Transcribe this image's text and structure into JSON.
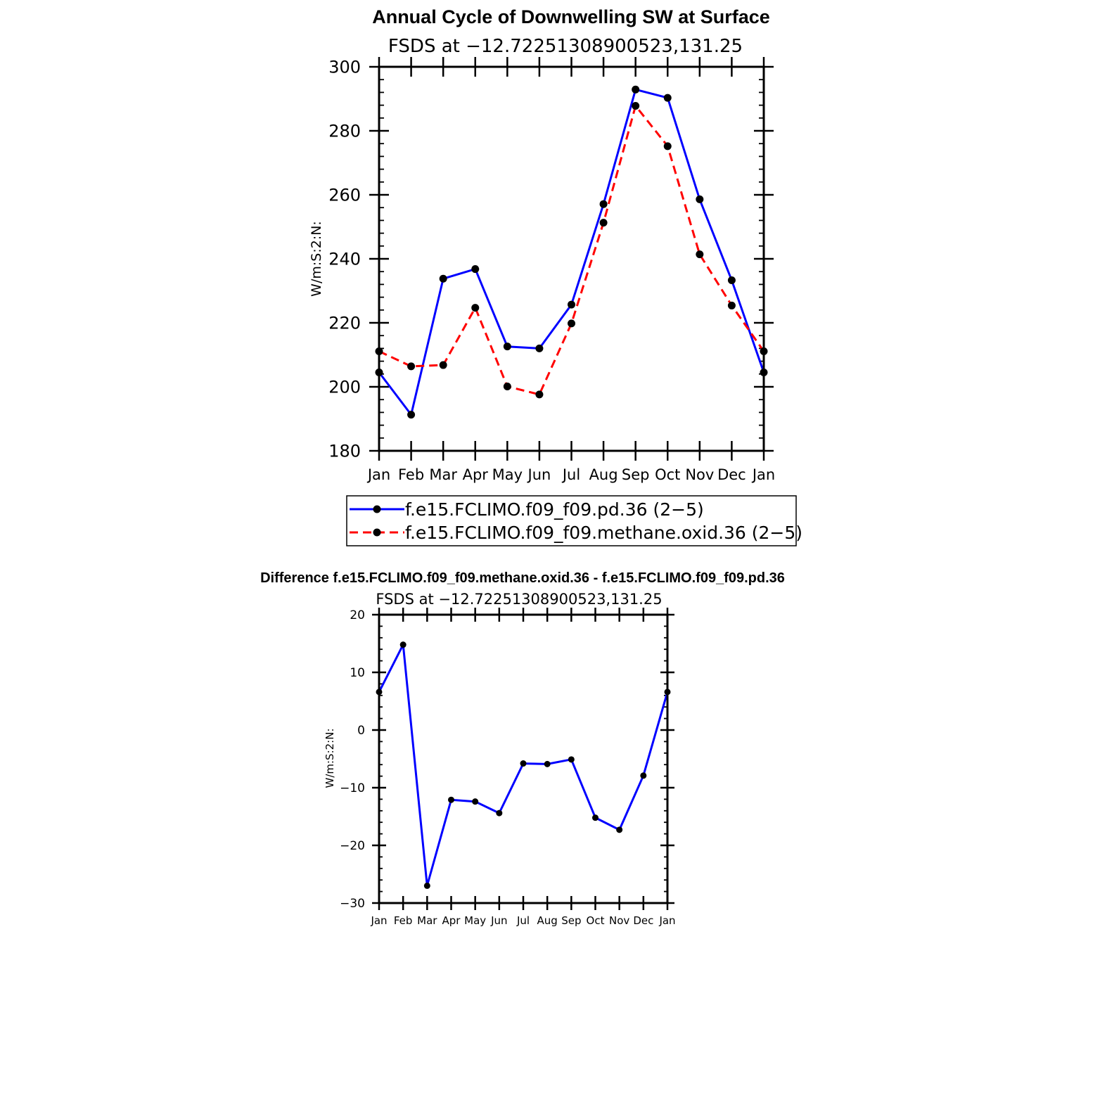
{
  "chart_data": [
    {
      "type": "line",
      "title": "Annual Cycle of Downwelling SW at Surface",
      "subtitle": "FSDS at −12.72251308900523,131.25",
      "ylabel": "W/m:S:2:N:",
      "ylim": [
        180,
        300
      ],
      "yticks": [
        "180",
        "200",
        "220",
        "240",
        "260",
        "280",
        "300"
      ],
      "categories": [
        "Jan",
        "Feb",
        "Mar",
        "Apr",
        "May",
        "Jun",
        "Jul",
        "Aug",
        "Sep",
        "Oct",
        "Nov",
        "Dec",
        "Jan"
      ],
      "legend_position": "bottom",
      "series": [
        {
          "name": "f.e15.FCLIMO.f09_f09.pd.36 (2−5)",
          "color": "#0000ff",
          "dash": "solid",
          "values": [
            204.5,
            191.3,
            233.8,
            236.8,
            212.6,
            212.0,
            225.7,
            257.1,
            292.9,
            290.3,
            258.6,
            233.3,
            204.5
          ]
        },
        {
          "name": "f.e15.FCLIMO.f09_f09.methane.oxid.36 (2−5)",
          "color": "#ff0000",
          "dash": "dashed",
          "values": [
            211.1,
            206.4,
            206.8,
            224.7,
            200.1,
            197.6,
            219.8,
            251.3,
            287.8,
            275.2,
            241.4,
            225.4,
            211.1
          ]
        }
      ]
    },
    {
      "type": "line",
      "title": "Difference f.e15.FCLIMO.f09_f09.methane.oxid.36 - f.e15.FCLIMO.f09_f09.pd.36",
      "subtitle": "FSDS at −12.72251308900523,131.25",
      "ylabel": "W/m:S:2:N:",
      "ylim": [
        -30,
        20
      ],
      "yticks": [
        "−30",
        "−20",
        "−10",
        "0",
        "10",
        "20"
      ],
      "categories": [
        "Jan",
        "Feb",
        "Mar",
        "Apr",
        "May",
        "Jun",
        "Jul",
        "Aug",
        "Sep",
        "Oct",
        "Nov",
        "Dec",
        "Jan"
      ],
      "series": [
        {
          "color": "#0000ff",
          "dash": "solid",
          "values": [
            6.6,
            14.8,
            -27.0,
            -12.1,
            -12.4,
            -14.4,
            -5.8,
            -5.9,
            -5.1,
            -15.2,
            -17.3,
            -7.9,
            6.6
          ]
        }
      ]
    }
  ]
}
